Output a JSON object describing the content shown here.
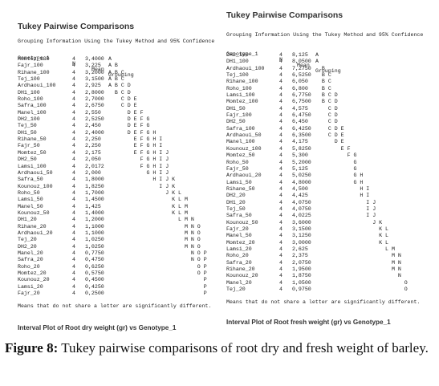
{
  "left": {
    "title": "Tukey Pairwise Comparisons",
    "subtitle": "Grouping Information Using the Tukey Method and 95% Confidence",
    "headers": {
      "genotype": "Genotype_1",
      "n": "N",
      "mean": "Mean",
      "grouping": "Grouping"
    },
    "rows": [
      [
        "Momtez_100",
        "4",
        "3,4000",
        "A"
      ],
      [
        "Fajr_100",
        "4",
        "3,225",
        "A B"
      ],
      [
        "Rihane_100",
        "4",
        "3,2000",
        "A B C"
      ],
      [
        "Tej_100",
        "4",
        "3,1500",
        "A B C"
      ],
      [
        "Ardhaoui_100",
        "4",
        "2,925",
        "A B C D"
      ],
      [
        "DH1_100",
        "4",
        "2,8000",
        "  B C D"
      ],
      [
        "Roho_100",
        "4",
        "2,7000",
        "    C D E"
      ],
      [
        "Safra_100",
        "4",
        "2,6750",
        "    C D E"
      ],
      [
        "Manel_100",
        "4",
        "2,550",
        "      D E F"
      ],
      [
        "DH2_100",
        "4",
        "2,5250",
        "      D E F G"
      ],
      [
        "Tej_50",
        "4",
        "2,450",
        "      D E F G"
      ],
      [
        "DH1_50",
        "4",
        "2,4000",
        "      D E F G H"
      ],
      [
        "Rihane_50",
        "4",
        "2,250",
        "        E F G H I"
      ],
      [
        "Fajr_50",
        "4",
        "2,250",
        "        E F G H I"
      ],
      [
        "Momtez_50",
        "4",
        "2,175",
        "        E F G H I J"
      ],
      [
        "DH2_50",
        "4",
        "2,050",
        "          F G H I J"
      ],
      [
        "Lamsi_100",
        "4",
        "2,0172",
        "          F G H I J"
      ],
      [
        "Ardhaoui_50",
        "4",
        "2,000",
        "            G H I J"
      ],
      [
        "Safra_50",
        "4",
        "1,8000",
        "              H I J K"
      ],
      [
        "Kounouz_100",
        "4",
        "1,8250",
        "                I J K"
      ],
      [
        "Roho_50",
        "4",
        "1,7000",
        "                  J K L"
      ],
      [
        "Lamsi_50",
        "4",
        "1,4500",
        "                    K L M"
      ],
      [
        "Manel_50",
        "4",
        "1,425",
        "                    K L M"
      ],
      [
        "Kounouz_50",
        "4",
        "1,4000",
        "                    K L M"
      ],
      [
        "DH1_20",
        "4",
        "1,2000",
        "                      L M N"
      ],
      [
        "Rihane_20",
        "4",
        "1,1000",
        "                        M N O"
      ],
      [
        "Ardhaoui_20",
        "4",
        "1,1000",
        "                        M N O"
      ],
      [
        "Tej_20",
        "4",
        "1,0250",
        "                        M N O"
      ],
      [
        "DH2_20",
        "4",
        "1,0250",
        "                        M N O"
      ],
      [
        "Manel_20",
        "4",
        "0,7750",
        "                          N O P"
      ],
      [
        "Safra_20",
        "4",
        "0,4750",
        "                          N O P"
      ],
      [
        "Roho_20",
        "4",
        "0,6250",
        "                            O P"
      ],
      [
        "Momtez_20",
        "4",
        "0,5750",
        "                            O P"
      ],
      [
        "Kounouz_20",
        "4",
        "0,4500",
        "                              P"
      ],
      [
        "Lamsi_20",
        "4",
        "0,4250",
        "                              P"
      ],
      [
        "Fajr_20",
        "4",
        "0,2500",
        "                              P"
      ]
    ],
    "note": "Means that do not share a letter are significantly different.",
    "figure_title": "Interval Plot of Root dry weight (gr) vs Genotype_1"
  },
  "right": {
    "title": "Tukey Pairwise Comparisons",
    "subtitle": "Grouping Information Using the Tukey Method and 95% Confidence",
    "headers": {
      "genotype": "Genotype_1",
      "n": "N",
      "mean": "Mean",
      "grouping": "Grouping"
    },
    "rows": [
      [
        "DH2_100",
        "4",
        "8,125",
        "A"
      ],
      [
        "DH1_100",
        "4",
        "8,0500",
        "A"
      ],
      [
        "Ardhaoui_100",
        "4",
        "7,2750",
        "  B"
      ],
      [
        "Tej_100",
        "4",
        "6,5250",
        "  B C"
      ],
      [
        "Rihane_100",
        "4",
        "6,050",
        "  B C"
      ],
      [
        "Roho_100",
        "4",
        "6,800",
        "  B C"
      ],
      [
        "Lamsi_100",
        "4",
        "6,7750",
        "  B C D"
      ],
      [
        "Momtez_100",
        "4",
        "6,7500",
        "  B C D"
      ],
      [
        "DH1_50",
        "4",
        "4,575",
        "    C D"
      ],
      [
        "Fajr_100",
        "4",
        "6,4750",
        "    C D"
      ],
      [
        "DH2_50",
        "4",
        "6,450",
        "    C D"
      ],
      [
        "Safra_100",
        "4",
        "6,4250",
        "    C D E"
      ],
      [
        "Ardhaoui_50",
        "4",
        "6,3500",
        "    C D E"
      ],
      [
        "Manel_100",
        "4",
        "4,175",
        "      D E"
      ],
      [
        "Kounouz_100",
        "4",
        "5,8250",
        "        E F"
      ],
      [
        "Momtez_50",
        "4",
        "5,300",
        "          F G"
      ],
      [
        "Roho_50",
        "4",
        "5,2000",
        "            G"
      ],
      [
        "Fajr_50",
        "4",
        "5,125",
        "            G"
      ],
      [
        "Ardhaoui_20",
        "4",
        "5,0250",
        "            G H"
      ],
      [
        "Lamsi_50",
        "4",
        "4,8000",
        "            G H"
      ],
      [
        "Rihane_50",
        "4",
        "4,500",
        "              H I"
      ],
      [
        "DH2_20",
        "4",
        "4,425",
        "              H I"
      ],
      [
        "DH1_20",
        "4",
        "4,0750",
        "                I J"
      ],
      [
        "Tej_50",
        "4",
        "4,0750",
        "                I J"
      ],
      [
        "Safra_50",
        "4",
        "4,0225",
        "                I J"
      ],
      [
        "Kounouz_50",
        "4",
        "3,6000",
        "                  J K"
      ],
      [
        "Fajr_20",
        "4",
        "3,1500",
        "                    K L"
      ],
      [
        "Manel_50",
        "4",
        "3,1250",
        "                    K L"
      ],
      [
        "Momtez_20",
        "4",
        "3,0000",
        "                    K L"
      ],
      [
        "Lamsi_20",
        "4",
        "2,625",
        "                      L M"
      ],
      [
        "Roho_20",
        "4",
        "2,375",
        "                        M N"
      ],
      [
        "Safra_20",
        "4",
        "2,0750",
        "                        M N"
      ],
      [
        "Rihane_20",
        "4",
        "1,9500",
        "                        M N"
      ],
      [
        "Kounouz_20",
        "4",
        "1,8750",
        "                          N"
      ],
      [
        "Manel_20",
        "4",
        "1,0500",
        "                            O"
      ],
      [
        "Tej_20",
        "4",
        "0,9750",
        "                            O"
      ]
    ],
    "note": "Means that do not share a letter are significantly different.",
    "figure_title": "Interval Plot of Root fresh weight (gr) vs Genotype_1"
  },
  "caption": {
    "label": "Figure 8:",
    "text": " Tukey pairwise comparisons of root dry and fresh weight of barley."
  }
}
